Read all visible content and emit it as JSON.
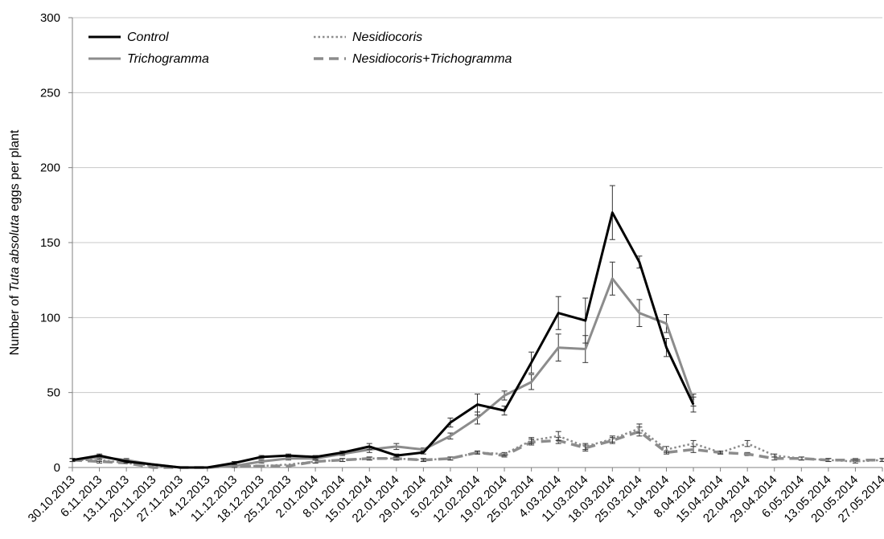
{
  "chart_data": {
    "type": "line",
    "ylabel_parts": [
      "Number of ",
      "Tuta absoluta",
      " eggs per plant"
    ],
    "ylim": [
      0,
      300
    ],
    "yticks": [
      0,
      50,
      100,
      150,
      200,
      250,
      300
    ],
    "grid": "horizontal",
    "legend_position": "top-left",
    "categories": [
      "30.10.2013",
      "6.11.2013",
      "13.11.2013",
      "20.11.2013",
      "27.11.2013",
      "4.12.2013",
      "11.12.2013",
      "18.12.2013",
      "25.12.2013",
      "2.01.2014",
      "8.01.2014",
      "15.01.2014",
      "22.01.2014",
      "29.01.2014",
      "5.02.2014",
      "12.02.2014",
      "19.02.2014",
      "25.02.2014",
      "4.03.2014",
      "11.03.2014",
      "18.03.2014",
      "25.03.2014",
      "1.04.2014",
      "8.04.2014",
      "15.04.2014",
      "22.04.2014",
      "29.04.2014",
      "6.05.2014",
      "13.05.2014",
      "20.05.2014",
      "27.05.2014"
    ],
    "series": [
      {
        "name": "Control",
        "color": "#000000",
        "style": "solid",
        "values": [
          5,
          8,
          4,
          2,
          0,
          0,
          3,
          7,
          8,
          7,
          10,
          14,
          8,
          10,
          30,
          42,
          38,
          70,
          103,
          98,
          170,
          137,
          80,
          42,
          null,
          null,
          null,
          null,
          null,
          null,
          null
        ],
        "errors": [
          1,
          1,
          1,
          0,
          0,
          0,
          1,
          1,
          1,
          1,
          1,
          2,
          1,
          1,
          3,
          7,
          3,
          7,
          11,
          15,
          18,
          4,
          6,
          5,
          null,
          null,
          null,
          null,
          null,
          null,
          null
        ]
      },
      {
        "name": "Trichogramma",
        "color": "#8c8c8c",
        "style": "solid",
        "values": [
          5,
          7,
          5,
          2,
          0,
          0,
          1,
          4,
          6,
          6,
          9,
          12,
          14,
          12,
          21,
          33,
          48,
          57,
          80,
          79,
          126,
          103,
          96,
          45,
          null,
          null,
          null,
          null,
          null,
          null,
          null
        ],
        "errors": [
          1,
          1,
          1,
          0,
          0,
          0,
          1,
          1,
          1,
          1,
          1,
          2,
          2,
          1,
          2,
          4,
          3,
          5,
          9,
          9,
          11,
          9,
          6,
          4,
          null,
          null,
          null,
          null,
          null,
          null,
          null
        ]
      },
      {
        "name": "Nesidiocoris",
        "color": "#8c8c8c",
        "style": "dotted",
        "values": [
          5,
          5,
          3,
          1,
          0,
          0,
          1,
          1,
          2,
          4,
          5,
          6,
          6,
          5,
          6,
          10,
          9,
          18,
          21,
          14,
          19,
          26,
          12,
          16,
          10,
          16,
          8,
          6,
          5,
          4,
          5
        ],
        "errors": [
          1,
          1,
          0,
          0,
          0,
          0,
          0,
          0,
          0,
          1,
          1,
          1,
          1,
          1,
          1,
          1,
          1,
          2,
          3,
          2,
          2,
          3,
          2,
          2,
          1,
          2,
          1,
          1,
          1,
          1,
          1
        ]
      },
      {
        "name": "Nesidiocoris+Trichogramma",
        "color": "#8c8c8c",
        "style": "dashed",
        "values": [
          5,
          4,
          3,
          0,
          0,
          0,
          1,
          1,
          1,
          4,
          5,
          6,
          6,
          5,
          6,
          10,
          8,
          17,
          18,
          13,
          18,
          24,
          10,
          12,
          10,
          9,
          6,
          6,
          5,
          5,
          5
        ],
        "errors": [
          1,
          1,
          0,
          0,
          0,
          0,
          0,
          0,
          0,
          1,
          1,
          1,
          1,
          1,
          1,
          1,
          1,
          2,
          2,
          2,
          2,
          3,
          1,
          2,
          1,
          1,
          1,
          1,
          1,
          1,
          1
        ]
      }
    ]
  }
}
